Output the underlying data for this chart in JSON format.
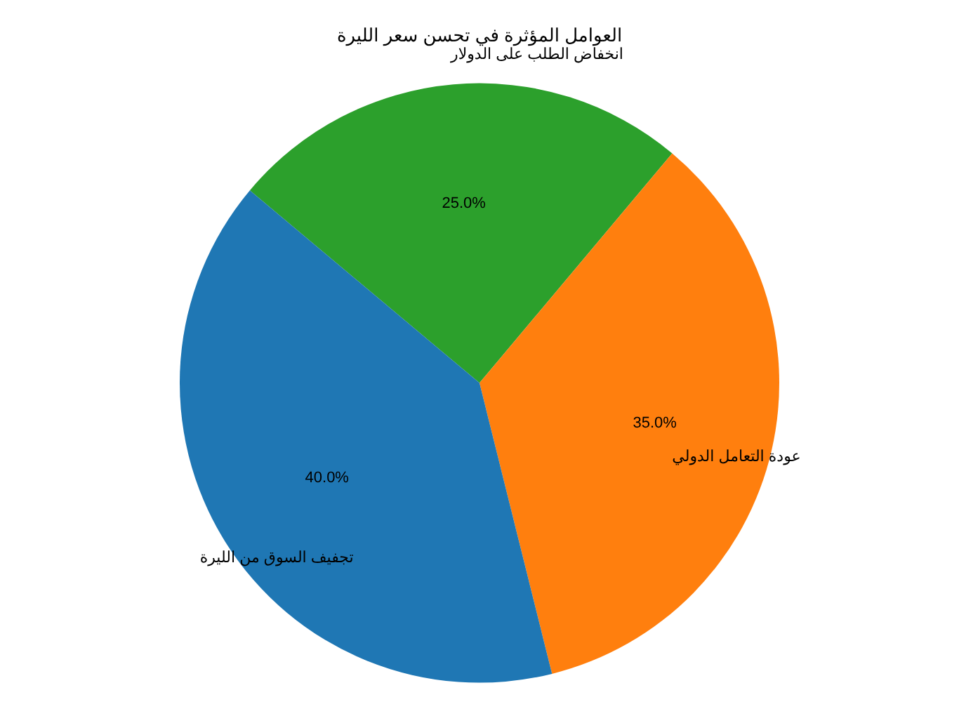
{
  "chart_data": {
    "type": "pie",
    "title": "العوامل المؤثرة في تحسن سعر الليرة",
    "categories": [
      "انخفاض الطلب على الدولار",
      "عودة التعامل الدولي",
      "تجفيف السوق من الليرة"
    ],
    "values": [
      25,
      35,
      40
    ],
    "colors": [
      "#2ca02c",
      "#ff7f0e",
      "#1f77b4"
    ],
    "value_labels": [
      "25.0%",
      "35.0%",
      "40.0%"
    ],
    "legend": false
  }
}
